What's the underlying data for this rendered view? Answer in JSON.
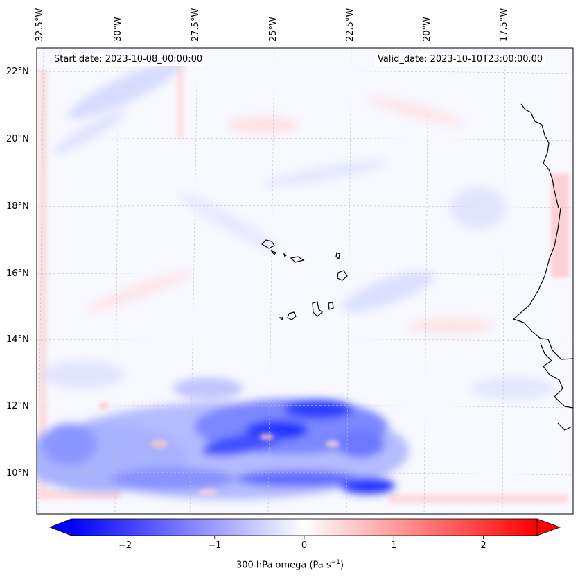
{
  "map": {
    "variable": "300 hPa omega",
    "start_date_label": "Start date: 2023-10-08_00:00:00",
    "valid_date_label": "Valid_date: 2023-10-10T23:00:00.00",
    "lon_labels": [
      "32.5°W",
      "30°W",
      "27.5°W",
      "25°W",
      "22.5°W",
      "20°W",
      "17.5°W"
    ],
    "lat_labels": [
      "22°N",
      "20°N",
      "18°N",
      "16°N",
      "14°N",
      "12°N",
      "10°N"
    ],
    "gridlines": true,
    "coastline_color": "#000000"
  },
  "colorbar": {
    "colormap": "bwr",
    "min": -2.6,
    "max": 2.6,
    "extend": "both",
    "ticks": [
      "−2",
      "−1",
      "0",
      "1",
      "2"
    ],
    "tick_values": [
      -2,
      -1,
      0,
      1,
      2
    ],
    "label_text": "300 hPa omega (Pa s",
    "label_exp": "−1",
    "label_close": ")",
    "colors": {
      "low": "#0000ff",
      "mid": "#ffffff",
      "high": "#ff0000"
    }
  }
}
